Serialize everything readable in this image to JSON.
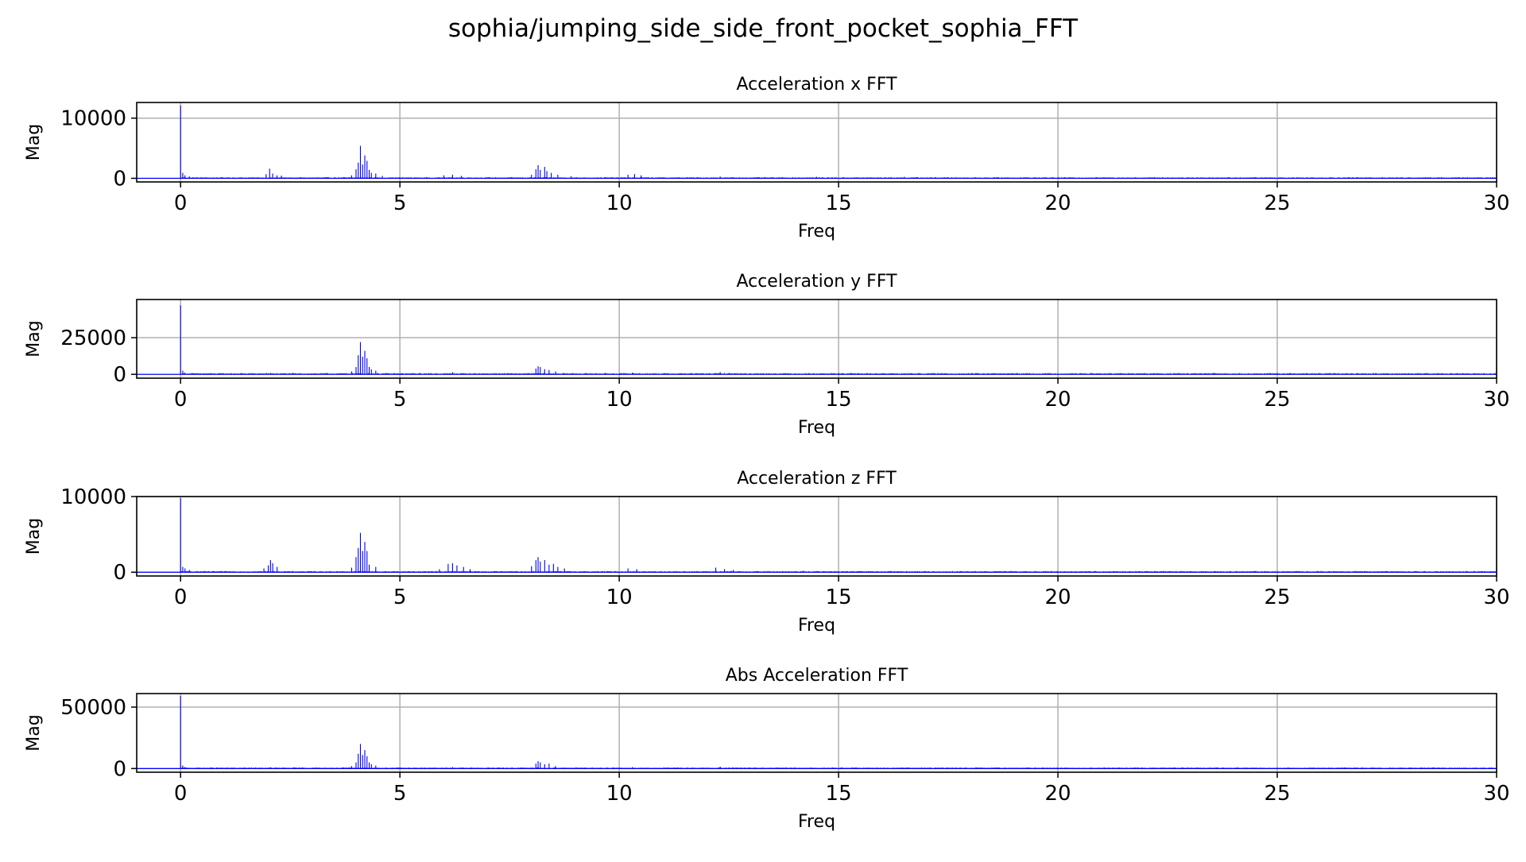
{
  "figure": {
    "title": "sophia/jumping_side_side_front_pocket_sophia_FFT"
  },
  "style": {
    "line_color": "#0000ff",
    "grid_color": "#b0b0b0",
    "axis_color": "#000000"
  },
  "chart_data": [
    {
      "type": "bar",
      "title": "Acceleration x FFT",
      "xlabel": "Freq",
      "ylabel": "Mag",
      "xlim": [
        -1,
        30
      ],
      "ylim": [
        -600,
        12600
      ],
      "xticks": [
        0,
        5,
        10,
        15,
        20,
        25,
        30
      ],
      "yticks": [
        0,
        10000
      ],
      "ytick_labels": [
        "0",
        "10000"
      ],
      "grid": true,
      "baseline": 150,
      "peaks": [
        [
          0.0,
          12100
        ],
        [
          0.05,
          900
        ],
        [
          0.1,
          500
        ],
        [
          0.2,
          300
        ],
        [
          1.95,
          700
        ],
        [
          2.03,
          1600
        ],
        [
          2.1,
          800
        ],
        [
          2.2,
          500
        ],
        [
          2.3,
          450
        ],
        [
          3.9,
          500
        ],
        [
          4.0,
          1500
        ],
        [
          4.05,
          2600
        ],
        [
          4.1,
          5400
        ],
        [
          4.15,
          2300
        ],
        [
          4.2,
          3800
        ],
        [
          4.25,
          2900
        ],
        [
          4.3,
          1400
        ],
        [
          4.35,
          900
        ],
        [
          4.45,
          800
        ],
        [
          4.6,
          400
        ],
        [
          6.0,
          500
        ],
        [
          6.2,
          600
        ],
        [
          6.4,
          400
        ],
        [
          8.0,
          600
        ],
        [
          8.1,
          1500
        ],
        [
          8.15,
          2200
        ],
        [
          8.2,
          1400
        ],
        [
          8.3,
          1900
        ],
        [
          8.35,
          1200
        ],
        [
          8.45,
          900
        ],
        [
          8.6,
          600
        ],
        [
          8.9,
          350
        ],
        [
          10.2,
          600
        ],
        [
          10.35,
          700
        ],
        [
          10.5,
          500
        ],
        [
          12.3,
          300
        ],
        [
          14.5,
          250
        ],
        [
          16.5,
          250
        ]
      ]
    },
    {
      "type": "bar",
      "title": "Acceleration y FFT",
      "xlabel": "Freq",
      "ylabel": "Mag",
      "xlim": [
        -1,
        30
      ],
      "ylim": [
        -2600,
        51000
      ],
      "xticks": [
        0,
        5,
        10,
        15,
        20,
        25,
        30
      ],
      "yticks": [
        0,
        25000
      ],
      "ytick_labels": [
        "0",
        "25000"
      ],
      "grid": true,
      "baseline": 700,
      "peaks": [
        [
          0.0,
          47000
        ],
        [
          0.05,
          2500
        ],
        [
          0.1,
          1200
        ],
        [
          2.05,
          1000
        ],
        [
          3.9,
          2000
        ],
        [
          4.0,
          5000
        ],
        [
          4.05,
          13000
        ],
        [
          4.1,
          22000
        ],
        [
          4.15,
          12000
        ],
        [
          4.2,
          16000
        ],
        [
          4.25,
          11000
        ],
        [
          4.3,
          5000
        ],
        [
          4.35,
          3500
        ],
        [
          4.45,
          2500
        ],
        [
          6.2,
          1500
        ],
        [
          8.1,
          4000
        ],
        [
          8.15,
          5500
        ],
        [
          8.2,
          5000
        ],
        [
          8.3,
          3500
        ],
        [
          8.4,
          3000
        ],
        [
          8.55,
          2000
        ],
        [
          10.3,
          1200
        ],
        [
          12.3,
          1500
        ],
        [
          12.5,
          1000
        ],
        [
          12.7,
          900
        ]
      ]
    },
    {
      "type": "bar",
      "title": "Acceleration z FFT",
      "xlabel": "Freq",
      "ylabel": "Mag",
      "xlim": [
        -1,
        30
      ],
      "ylim": [
        -500,
        10000
      ],
      "xticks": [
        0,
        5,
        10,
        15,
        20,
        25,
        30
      ],
      "yticks": [
        0,
        10000
      ],
      "ytick_labels": [
        "0",
        "10000"
      ],
      "grid": true,
      "baseline": 120,
      "peaks": [
        [
          0.0,
          9800
        ],
        [
          0.05,
          700
        ],
        [
          0.1,
          500
        ],
        [
          0.2,
          300
        ],
        [
          1.9,
          500
        ],
        [
          2.0,
          900
        ],
        [
          2.05,
          1600
        ],
        [
          2.1,
          1200
        ],
        [
          2.2,
          700
        ],
        [
          3.9,
          600
        ],
        [
          4.0,
          2000
        ],
        [
          4.05,
          3200
        ],
        [
          4.1,
          5200
        ],
        [
          4.15,
          2800
        ],
        [
          4.2,
          4000
        ],
        [
          4.25,
          2800
        ],
        [
          4.3,
          1000
        ],
        [
          4.45,
          700
        ],
        [
          5.9,
          400
        ],
        [
          6.1,
          1100
        ],
        [
          6.2,
          1200
        ],
        [
          6.3,
          900
        ],
        [
          6.45,
          700
        ],
        [
          6.6,
          400
        ],
        [
          8.0,
          800
        ],
        [
          8.1,
          1600
        ],
        [
          8.15,
          2000
        ],
        [
          8.2,
          1400
        ],
        [
          8.3,
          1600
        ],
        [
          8.4,
          1000
        ],
        [
          8.5,
          1100
        ],
        [
          8.6,
          700
        ],
        [
          8.75,
          500
        ],
        [
          10.2,
          500
        ],
        [
          10.4,
          400
        ],
        [
          12.2,
          600
        ],
        [
          12.4,
          400
        ],
        [
          12.6,
          300
        ],
        [
          14.2,
          200
        ]
      ]
    },
    {
      "type": "bar",
      "title": "Abs Acceleration FFT",
      "xlabel": "Freq",
      "ylabel": "Mag",
      "xlim": [
        -1,
        30
      ],
      "ylim": [
        -3000,
        61000
      ],
      "xticks": [
        0,
        5,
        10,
        15,
        20,
        25,
        30
      ],
      "yticks": [
        0,
        50000
      ],
      "ytick_labels": [
        "0",
        "50000"
      ],
      "grid": true,
      "baseline": 700,
      "peaks": [
        [
          0.0,
          59000
        ],
        [
          0.05,
          2500
        ],
        [
          0.1,
          1200
        ],
        [
          2.05,
          1000
        ],
        [
          3.9,
          2000
        ],
        [
          4.0,
          5000
        ],
        [
          4.05,
          12000
        ],
        [
          4.1,
          20000
        ],
        [
          4.15,
          11000
        ],
        [
          4.2,
          15000
        ],
        [
          4.25,
          10000
        ],
        [
          4.3,
          5000
        ],
        [
          4.35,
          3500
        ],
        [
          4.45,
          2500
        ],
        [
          6.2,
          1200
        ],
        [
          8.1,
          4000
        ],
        [
          8.15,
          6000
        ],
        [
          8.2,
          5000
        ],
        [
          8.3,
          3500
        ],
        [
          8.4,
          4000
        ],
        [
          8.55,
          2000
        ],
        [
          10.3,
          1200
        ],
        [
          12.3,
          1500
        ],
        [
          12.5,
          1000
        ]
      ]
    }
  ]
}
